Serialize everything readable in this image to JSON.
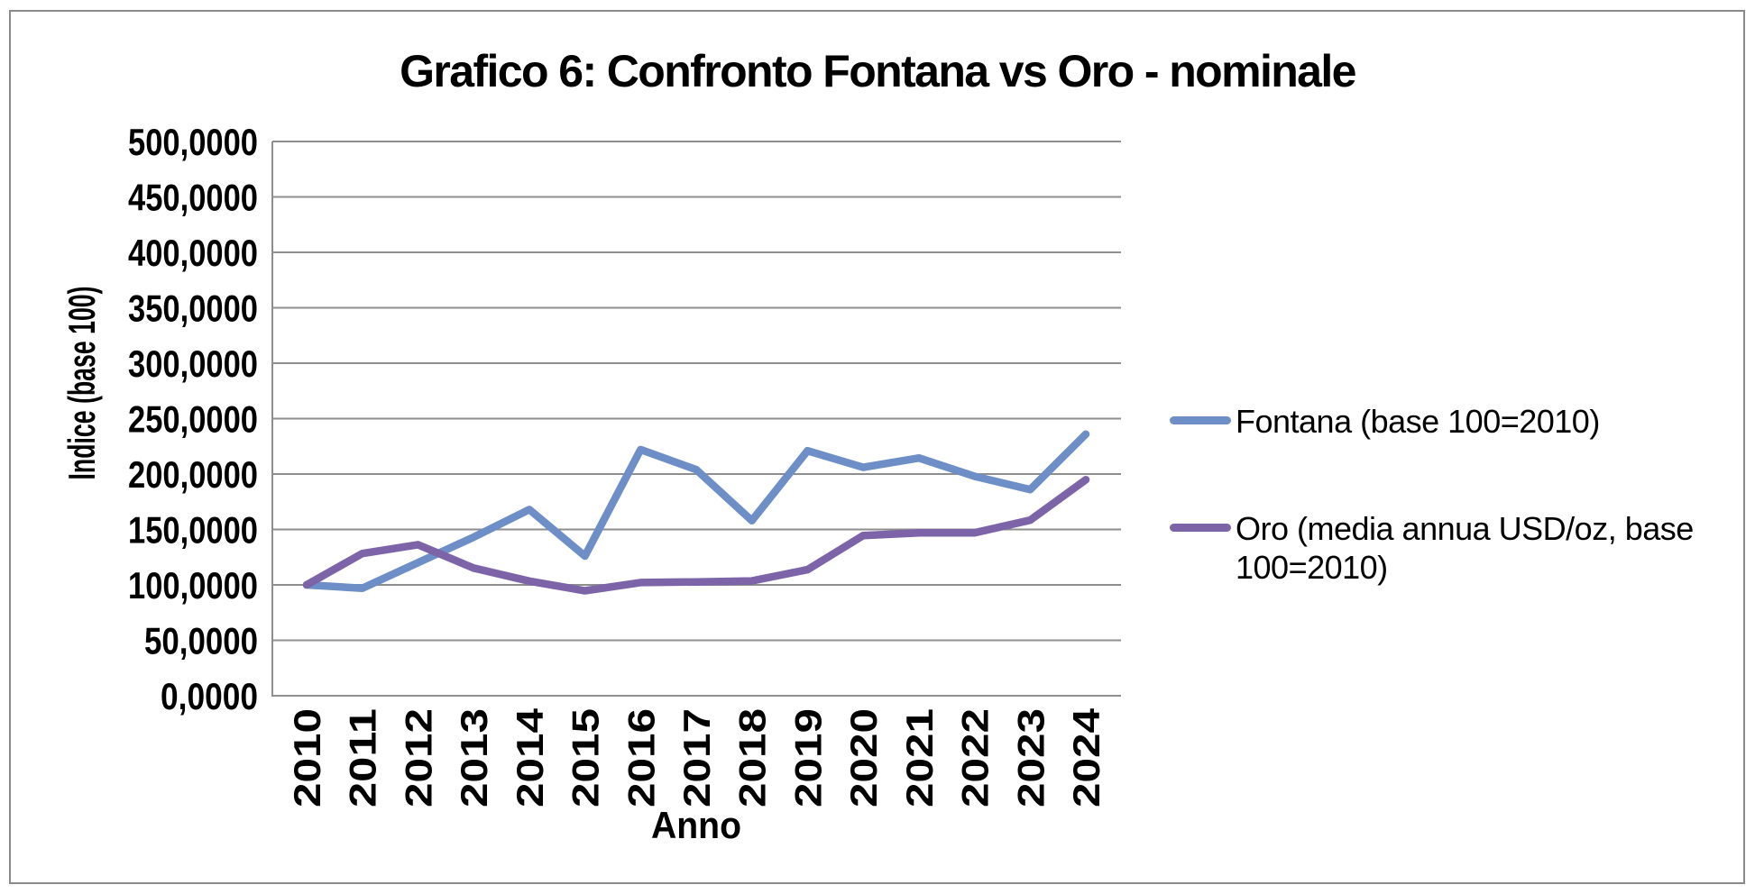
{
  "window": {
    "background_color": "#ffffff",
    "border_color": "#8a8a8a"
  },
  "chart_data": {
    "type": "line",
    "title": "Grafico 6: Confronto Fontana vs Oro - nominale",
    "xlabel": "Anno",
    "ylabel": "Indice (base 100)",
    "categories": [
      "2010",
      "2011",
      "2012",
      "2013",
      "2014",
      "2015",
      "2016",
      "2017",
      "2018",
      "2019",
      "2020",
      "2021",
      "2022",
      "2023",
      "2024"
    ],
    "series": [
      {
        "name": "Fontana (base 100=2010)",
        "color": "#6D8EC6",
        "values": [
          100.0,
          97.0,
          120.0,
          143.0,
          168.0,
          126.0,
          222.0,
          204.0,
          158.0,
          221.0,
          206.0,
          214.5,
          198.0,
          186.0,
          236.0
        ]
      },
      {
        "name": "Oro (media annua USD/oz, base 100=2010)",
        "color": "#7D64A8",
        "values": [
          100.0,
          128.3,
          136.3,
          115.2,
          103.4,
          94.7,
          102.1,
          102.7,
          103.6,
          113.7,
          144.5,
          146.9,
          147.0,
          158.4,
          194.9
        ]
      }
    ],
    "ylim": [
      0,
      500
    ],
    "y_tick_step": 50,
    "y_tick_labels": [
      "0,0000",
      "50,0000",
      "100,0000",
      "150,0000",
      "200,0000",
      "250,0000",
      "300,0000",
      "350,0000",
      "400,0000",
      "450,0000",
      "500,0000"
    ],
    "grid": true,
    "gridline_color": "#8E8E8E",
    "axis_color": "#8E8E8E",
    "legend_position": "right-middle"
  },
  "legend": {
    "fontana_label": "Fontana (base 100=2010)",
    "oro_label_line1": "Oro (media annua USD/oz, base",
    "oro_label_line2": "100=2010)"
  }
}
